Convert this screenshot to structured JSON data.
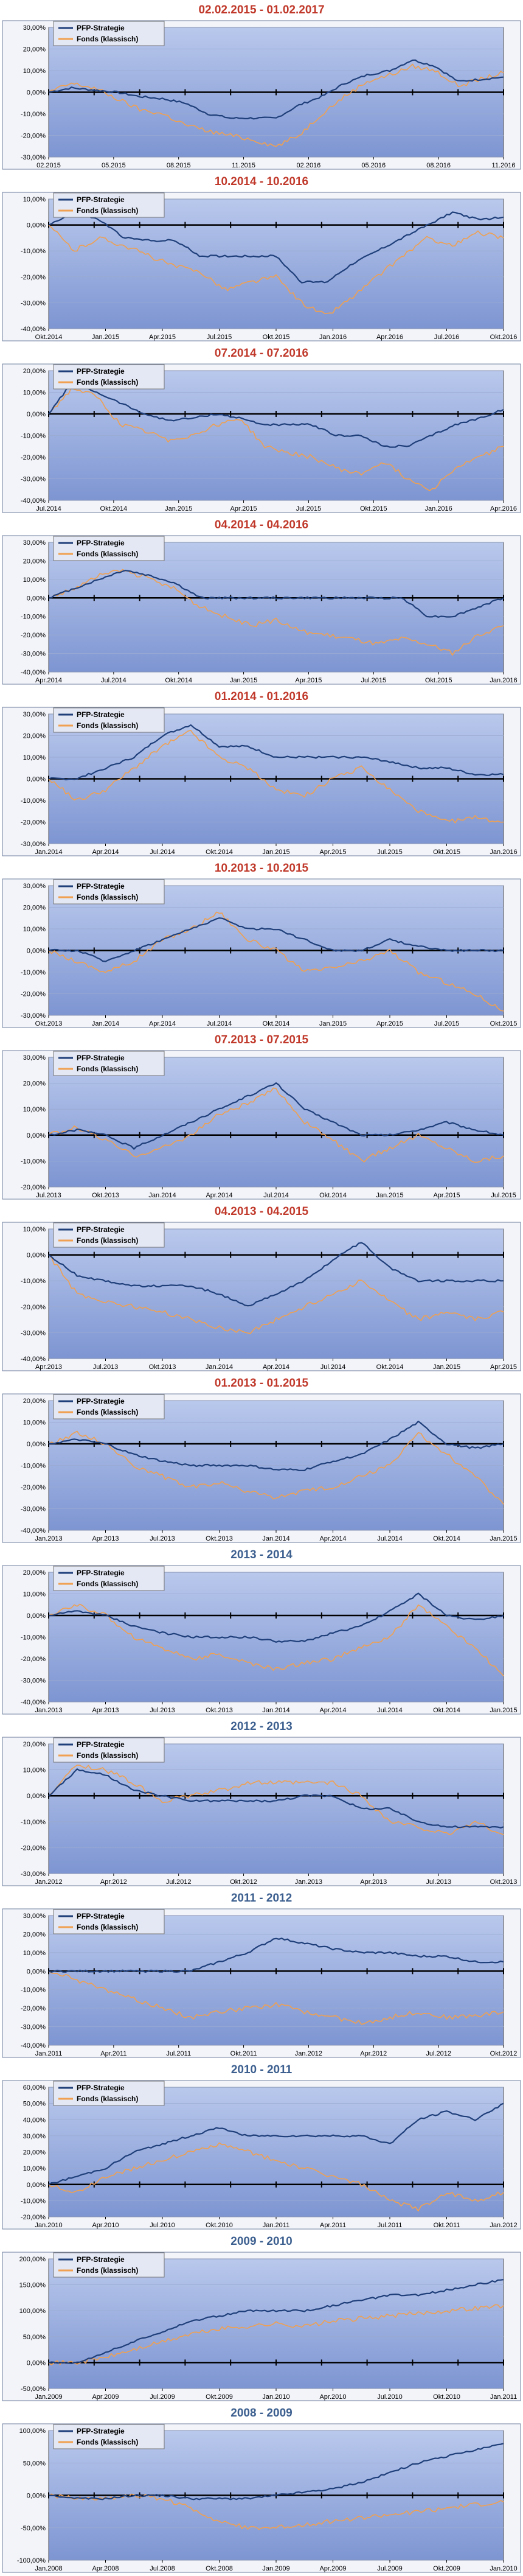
{
  "colors": {
    "strategy_line": "#1f3f7a",
    "fund_line": "#f0a050",
    "zero_line": "#000000",
    "plot_bg_top": "#b9c8ec",
    "plot_bg_bottom": "#7d95d2",
    "legend_bg": "#e4e8f4",
    "title_red": "#c0392b",
    "title_blue": "#3c5f8f"
  },
  "legend": {
    "strategy": "PFP-Strategie",
    "fund": "Fonds (klassisch)"
  },
  "chart_data": [
    {
      "type": "line",
      "title": "02.02.2015 - 01.02.2017",
      "title_color": "red",
      "yticks": [
        "30,00%",
        "20,00%",
        "10,00%",
        "0,00%",
        "-10,00%",
        "-20,00%",
        "-30,00%"
      ],
      "ylim": [
        -30,
        30
      ],
      "xticks": [
        "02.2015",
        "05.2015",
        "08.2015",
        "11.2015",
        "02.2016",
        "05.2016",
        "08.2016",
        "11.2016"
      ],
      "series": [
        {
          "name": "PFP-Strategie",
          "values": [
            0,
            2,
            1,
            0,
            -2,
            -3,
            -5,
            -10,
            -12,
            -12,
            -12,
            -6,
            -2,
            4,
            8,
            10,
            15,
            12,
            5,
            6,
            7
          ]
        },
        {
          "name": "Fonds (klassisch)",
          "values": [
            0,
            4,
            2,
            -3,
            -8,
            -10,
            -15,
            -18,
            -20,
            -22,
            -25,
            -20,
            -10,
            -2,
            5,
            8,
            12,
            10,
            3,
            6,
            9
          ]
        }
      ]
    },
    {
      "type": "line",
      "title": "10.2014 - 10.2016",
      "title_color": "red",
      "yticks": [
        "10,00%",
        "0,00%",
        "-10,00%",
        "-20,00%",
        "-30,00%",
        "-40,00%"
      ],
      "ylim": [
        -40,
        10
      ],
      "xticks": [
        "Okt.2014",
        "Jan.2015",
        "Apr.2015",
        "Jul.2015",
        "Okt.2015",
        "Jan.2016",
        "Apr.2016",
        "Jul.2016",
        "Okt.2016"
      ],
      "series": [
        {
          "name": "PFP-Strategie",
          "values": [
            0,
            5,
            2,
            -5,
            -6,
            -6,
            -12,
            -12,
            -12,
            -12,
            -22,
            -22,
            -15,
            -10,
            -5,
            0,
            5,
            2,
            3
          ]
        },
        {
          "name": "Fonds (klassisch)",
          "values": [
            0,
            -10,
            -5,
            -8,
            -12,
            -16,
            -18,
            -25,
            -22,
            -20,
            -30,
            -35,
            -28,
            -20,
            -12,
            -5,
            -8,
            -3,
            -5
          ]
        }
      ]
    },
    {
      "type": "line",
      "title": "07.2014 - 07.2016",
      "title_color": "red",
      "yticks": [
        "20,00%",
        "10,00%",
        "0,00%",
        "-10,00%",
        "-20,00%",
        "-30,00%",
        "-40,00%"
      ],
      "ylim": [
        -40,
        20
      ],
      "xticks": [
        "Jul.2014",
        "Okt.2014",
        "Jan.2015",
        "Apr.2015",
        "Jul.2015",
        "Okt.2015",
        "Jan.2016",
        "Apr.2016"
      ],
      "series": [
        {
          "name": "PFP-Strategie",
          "values": [
            0,
            15,
            10,
            5,
            0,
            -3,
            -2,
            0,
            -2,
            -5,
            -5,
            -5,
            -10,
            -10,
            -15,
            -15,
            -10,
            -5,
            -2,
            2
          ]
        },
        {
          "name": "Fonds (klassisch)",
          "values": [
            0,
            12,
            8,
            -5,
            -8,
            -12,
            -10,
            -5,
            -2,
            -15,
            -18,
            -20,
            -25,
            -28,
            -22,
            -30,
            -35,
            -25,
            -20,
            -15
          ]
        }
      ]
    },
    {
      "type": "line",
      "title": "04.2014 - 04.2016",
      "title_color": "red",
      "yticks": [
        "30,00%",
        "20,00%",
        "10,00%",
        "0,00%",
        "-10,00%",
        "-20,00%",
        "-30,00%",
        "-40,00%"
      ],
      "ylim": [
        -40,
        30
      ],
      "xticks": [
        "Apr.2014",
        "Jul.2014",
        "Okt.2014",
        "Jan.2015",
        "Apr.2015",
        "Jul.2015",
        "Okt.2015",
        "Jan.2016"
      ],
      "series": [
        {
          "name": "PFP-Strategie",
          "values": [
            0,
            5,
            10,
            15,
            12,
            8,
            0,
            0,
            0,
            0,
            0,
            0,
            0,
            0,
            0,
            -10,
            -10,
            -5,
            0
          ]
        },
        {
          "name": "Fonds (klassisch)",
          "values": [
            0,
            5,
            12,
            15,
            10,
            5,
            -5,
            -10,
            -15,
            -12,
            -18,
            -20,
            -22,
            -25,
            -22,
            -25,
            -30,
            -20,
            -15
          ]
        }
      ]
    },
    {
      "type": "line",
      "title": "01.2014 - 01.2016",
      "title_color": "red",
      "yticks": [
        "30,00%",
        "20,00%",
        "10,00%",
        "0,00%",
        "-10,00%",
        "-20,00%",
        "-30,00%"
      ],
      "ylim": [
        -30,
        30
      ],
      "xticks": [
        "Jan.2014",
        "Apr.2014",
        "Jul.2014",
        "Okt.2014",
        "Jan.2015",
        "Apr.2015",
        "Jul.2015",
        "Okt.2015",
        "Jan.2016"
      ],
      "series": [
        {
          "name": "PFP-Strategie",
          "values": [
            0,
            0,
            5,
            10,
            20,
            25,
            15,
            15,
            10,
            10,
            10,
            10,
            8,
            5,
            5,
            2,
            2
          ]
        },
        {
          "name": "Fonds (klassisch)",
          "values": [
            0,
            -10,
            -5,
            5,
            15,
            22,
            10,
            5,
            -5,
            -8,
            0,
            5,
            -5,
            -15,
            -20,
            -18,
            -20
          ]
        }
      ]
    },
    {
      "type": "line",
      "title": "10.2013 - 10.2015",
      "title_color": "red",
      "yticks": [
        "30,00%",
        "20,00%",
        "10,00%",
        "0,00%",
        "-10,00%",
        "-20,00%",
        "-30,00%"
      ],
      "ylim": [
        -30,
        30
      ],
      "xticks": [
        "Okt.2013",
        "Jan.2014",
        "Apr.2014",
        "Jul.2014",
        "Okt.2014",
        "Jan.2015",
        "Apr.2015",
        "Jul.2015",
        "Okt.2015"
      ],
      "series": [
        {
          "name": "PFP-Strategie",
          "values": [
            0,
            0,
            -5,
            0,
            5,
            10,
            15,
            10,
            10,
            5,
            0,
            0,
            5,
            2,
            0,
            0,
            0
          ]
        },
        {
          "name": "Fonds (klassisch)",
          "values": [
            0,
            -5,
            -10,
            -5,
            5,
            10,
            18,
            5,
            0,
            -10,
            -8,
            -5,
            0,
            -10,
            -15,
            -20,
            -28
          ]
        }
      ]
    },
    {
      "type": "line",
      "title": "07.2013 - 07.2015",
      "title_color": "red",
      "yticks": [
        "30,00%",
        "20,00%",
        "10,00%",
        "0,00%",
        "-10,00%",
        "-20,00%"
      ],
      "ylim": [
        -20,
        30
      ],
      "xticks": [
        "Jul.2013",
        "Okt.2013",
        "Jan.2014",
        "Apr.2014",
        "Jul.2014",
        "Okt.2014",
        "Jan.2015",
        "Apr.2015",
        "Jul.2015"
      ],
      "series": [
        {
          "name": "PFP-Strategie",
          "values": [
            0,
            2,
            0,
            -5,
            0,
            5,
            10,
            15,
            20,
            10,
            5,
            0,
            0,
            2,
            5,
            2,
            0
          ]
        },
        {
          "name": "Fonds (klassisch)",
          "values": [
            0,
            3,
            -2,
            -8,
            -5,
            0,
            8,
            12,
            18,
            5,
            -2,
            -10,
            -5,
            0,
            -5,
            -10,
            -8
          ]
        }
      ]
    },
    {
      "type": "line",
      "title": "04.2013 - 04.2015",
      "title_color": "red",
      "yticks": [
        "10,00%",
        "0,00%",
        "-10,00%",
        "-20,00%",
        "-30,00%",
        "-40,00%"
      ],
      "ylim": [
        -40,
        10
      ],
      "xticks": [
        "Apr.2013",
        "Jul.2013",
        "Okt.2013",
        "Jan.2014",
        "Apr.2014",
        "Jul.2014",
        "Okt.2014",
        "Jan.2015",
        "Apr.2015"
      ],
      "series": [
        {
          "name": "PFP-Strategie",
          "values": [
            0,
            -8,
            -10,
            -12,
            -12,
            -12,
            -15,
            -20,
            -15,
            -10,
            -2,
            5,
            -5,
            -10,
            -10,
            -10,
            -10
          ]
        },
        {
          "name": "Fonds (klassisch)",
          "values": [
            0,
            -15,
            -18,
            -20,
            -22,
            -25,
            -28,
            -30,
            -25,
            -20,
            -15,
            -10,
            -18,
            -25,
            -22,
            -25,
            -22
          ]
        }
      ]
    },
    {
      "type": "line",
      "title": "01.2013 - 01.2015",
      "title_color": "red",
      "yticks": [
        "20,00%",
        "10,00%",
        "0,00%",
        "-10,00%",
        "-20,00%",
        "-30,00%",
        "-40,00%"
      ],
      "ylim": [
        -40,
        20
      ],
      "xticks": [
        "Jan.2013",
        "Apr.2013",
        "Jul.2013",
        "Okt.2013",
        "Jan.2014",
        "Apr.2014",
        "Jul.2014",
        "Okt.2014",
        "Jan.2015"
      ],
      "series": [
        {
          "name": "PFP-Strategie",
          "values": [
            0,
            2,
            0,
            -5,
            -8,
            -10,
            -10,
            -10,
            -12,
            -12,
            -8,
            -5,
            2,
            10,
            0,
            -2,
            0
          ]
        },
        {
          "name": "Fonds (klassisch)",
          "values": [
            0,
            5,
            0,
            -10,
            -15,
            -20,
            -18,
            -22,
            -25,
            -22,
            -20,
            -15,
            -10,
            5,
            -5,
            -15,
            -28
          ]
        }
      ]
    },
    {
      "type": "line",
      "title": "2013 - 2014",
      "title_color": "blue",
      "yticks": [
        "20,00%",
        "10,00%",
        "0,00%",
        "-10,00%",
        "-20,00%",
        "-30,00%",
        "-40,00%"
      ],
      "ylim": [
        -40,
        20
      ],
      "xticks": [
        "Jan.2013",
        "Apr.2013",
        "Jul.2013",
        "Okt.2013",
        "Jan.2014",
        "Apr.2014",
        "Jul.2014",
        "Okt.2014",
        "Jan.2015"
      ],
      "series": [
        {
          "name": "PFP-Strategie",
          "values": [
            0,
            2,
            0,
            -5,
            -8,
            -10,
            -10,
            -10,
            -12,
            -12,
            -8,
            -5,
            2,
            10,
            0,
            -2,
            0
          ]
        },
        {
          "name": "Fonds (klassisch)",
          "values": [
            0,
            5,
            0,
            -10,
            -15,
            -20,
            -18,
            -22,
            -25,
            -22,
            -20,
            -15,
            -10,
            5,
            -5,
            -15,
            -28
          ]
        }
      ]
    },
    {
      "type": "line",
      "title": "2012 - 2013",
      "title_color": "blue",
      "yticks": [
        "20,00%",
        "10,00%",
        "0,00%",
        "-10,00%",
        "-20,00%",
        "-30,00%"
      ],
      "ylim": [
        -30,
        20
      ],
      "xticks": [
        "Jan.2012",
        "Apr.2012",
        "Jul.2012",
        "Okt.2012",
        "Jan.2013",
        "Apr.2013",
        "Jul.2013",
        "Okt.2013"
      ],
      "series": [
        {
          "name": "PFP-Strategie",
          "values": [
            0,
            10,
            8,
            2,
            0,
            -2,
            -2,
            -2,
            -2,
            0,
            0,
            -5,
            -5,
            -10,
            -12,
            -12,
            -12
          ]
        },
        {
          "name": "Fonds (klassisch)",
          "values": [
            0,
            12,
            10,
            5,
            -2,
            0,
            2,
            5,
            5,
            5,
            5,
            0,
            -10,
            -12,
            -15,
            -10,
            -15
          ]
        }
      ]
    },
    {
      "type": "line",
      "title": "2011 - 2012",
      "title_color": "blue",
      "yticks": [
        "30,00%",
        "20,00%",
        "10,00%",
        "0,00%",
        "-10,00%",
        "-20,00%",
        "-30,00%",
        "-40,00%"
      ],
      "ylim": [
        -40,
        30
      ],
      "xticks": [
        "Jan.2011",
        "Apr.2011",
        "Jul.2011",
        "Okt.2011",
        "Jan.2012",
        "Apr.2012",
        "Jul.2012",
        "Okt.2012"
      ],
      "series": [
        {
          "name": "PFP-Strategie",
          "values": [
            0,
            0,
            0,
            0,
            0,
            0,
            5,
            10,
            18,
            15,
            12,
            10,
            10,
            8,
            8,
            5,
            5
          ]
        },
        {
          "name": "Fonds (klassisch)",
          "values": [
            0,
            -5,
            -10,
            -15,
            -20,
            -25,
            -22,
            -20,
            -18,
            -22,
            -25,
            -28,
            -25,
            -22,
            -25,
            -24,
            -22
          ]
        }
      ]
    },
    {
      "type": "line",
      "title": "2010 - 2011",
      "title_color": "blue",
      "yticks": [
        "60,00%",
        "50,00%",
        "40,00%",
        "30,00%",
        "20,00%",
        "10,00%",
        "0,00%",
        "-10,00%",
        "-20,00%"
      ],
      "ylim": [
        -20,
        60
      ],
      "xticks": [
        "Jan.2010",
        "Apr.2010",
        "Jul.2010",
        "Okt.2010",
        "Jan.2011",
        "Apr.2011",
        "Jul.2011",
        "Okt.2011",
        "Jan.2012"
      ],
      "series": [
        {
          "name": "PFP-Strategie",
          "values": [
            0,
            5,
            10,
            20,
            25,
            30,
            35,
            30,
            30,
            30,
            30,
            30,
            25,
            40,
            45,
            40,
            50
          ]
        },
        {
          "name": "Fonds (klassisch)",
          "values": [
            0,
            -5,
            5,
            10,
            15,
            20,
            25,
            20,
            15,
            10,
            5,
            0,
            -10,
            -15,
            -5,
            -10,
            -5
          ]
        }
      ]
    },
    {
      "type": "line",
      "title": "2009 - 2010",
      "title_color": "blue",
      "yticks": [
        "200,00%",
        "150,00%",
        "100,00%",
        "50,00%",
        "0,00%",
        "-50,00%"
      ],
      "ylim": [
        -50,
        200
      ],
      "xticks": [
        "Jan.2009",
        "Apr.2009",
        "Jul.2009",
        "Okt.2009",
        "Jan.2010",
        "Apr.2010",
        "Jul.2010",
        "Okt.2010",
        "Jan.2011"
      ],
      "series": [
        {
          "name": "PFP-Strategie",
          "values": [
            0,
            0,
            20,
            40,
            60,
            80,
            90,
            100,
            100,
            100,
            110,
            120,
            130,
            130,
            140,
            150,
            160
          ]
        },
        {
          "name": "Fonds (klassisch)",
          "values": [
            0,
            0,
            10,
            25,
            40,
            55,
            65,
            70,
            75,
            70,
            80,
            85,
            90,
            95,
            100,
            105,
            110
          ]
        }
      ]
    },
    {
      "type": "line",
      "title": "2008 - 2009",
      "title_color": "blue",
      "yticks": [
        "100,00%",
        "50,00%",
        "0,00%",
        "-50,00%",
        "-100,00%"
      ],
      "ylim": [
        -100,
        100
      ],
      "xticks": [
        "Jan.2008",
        "Apr.2008",
        "Jul.2008",
        "Okt.2008",
        "Jan.2009",
        "Apr.2009",
        "Jul.2009",
        "Okt.2009",
        "Jan.2010"
      ],
      "series": [
        {
          "name": "PFP-Strategie",
          "values": [
            0,
            -5,
            -5,
            0,
            0,
            -5,
            -5,
            -5,
            0,
            5,
            10,
            20,
            35,
            50,
            60,
            70,
            80
          ]
        },
        {
          "name": "Fonds (klassisch)",
          "values": [
            0,
            -5,
            -5,
            0,
            -5,
            -20,
            -40,
            -50,
            -50,
            -45,
            -40,
            -35,
            -30,
            -25,
            -20,
            -15,
            -10
          ]
        }
      ]
    }
  ]
}
